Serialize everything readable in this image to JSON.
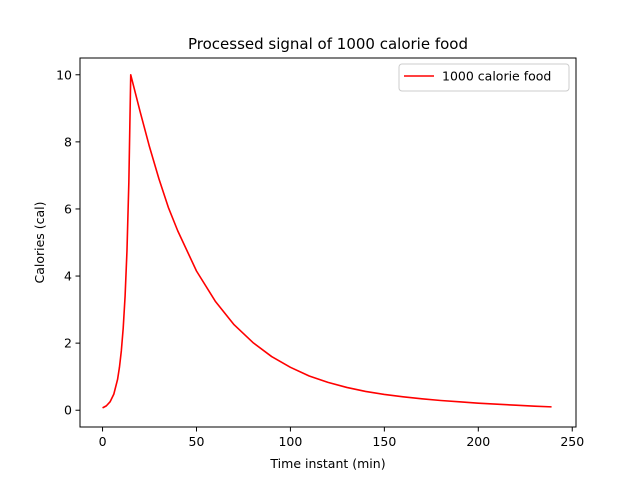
{
  "chart_data": {
    "type": "line",
    "title": "Processed signal of 1000 calorie food",
    "xlabel": "Time instant (min)",
    "ylabel": "Calories (cal)",
    "xlim": [
      -12,
      252
    ],
    "ylim": [
      -0.5,
      10.5
    ],
    "xticks": [
      0,
      50,
      100,
      150,
      200,
      250
    ],
    "yticks": [
      0,
      2,
      4,
      6,
      8,
      10
    ],
    "grid": false,
    "legend_position": "top-right",
    "series": [
      {
        "name": "1000 calorie food",
        "color": "#ff0000",
        "x": [
          0,
          2,
          4,
          6,
          8,
          9,
          10,
          11,
          12,
          13,
          14,
          15,
          20,
          25,
          30,
          35,
          40,
          50,
          60,
          70,
          80,
          90,
          100,
          110,
          120,
          130,
          140,
          150,
          160,
          170,
          180,
          190,
          200,
          210,
          220,
          230,
          239
        ],
        "y": [
          0.07,
          0.13,
          0.25,
          0.48,
          0.92,
          1.28,
          1.77,
          2.45,
          3.4,
          4.75,
          6.8,
          10.0,
          8.9,
          7.85,
          6.9,
          6.05,
          5.35,
          4.15,
          3.25,
          2.55,
          2.02,
          1.6,
          1.28,
          1.02,
          0.83,
          0.68,
          0.56,
          0.47,
          0.4,
          0.34,
          0.29,
          0.25,
          0.21,
          0.18,
          0.15,
          0.12,
          0.1
        ]
      }
    ]
  }
}
